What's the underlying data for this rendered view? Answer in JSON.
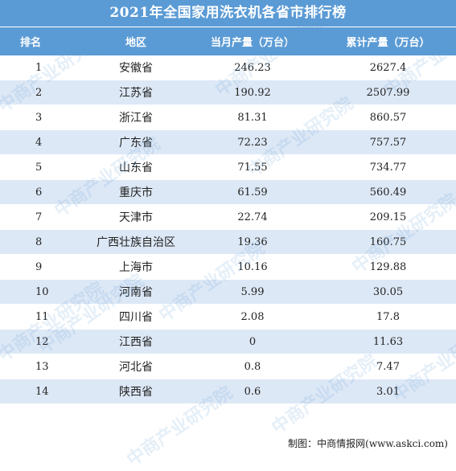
{
  "title": "2021年全国家用洗衣机各省市排行榜",
  "headers": {
    "rank": "排名",
    "region": "地区",
    "monthly": "当月产量（万台）",
    "cumulative": "累计产量（万台）"
  },
  "rows": [
    {
      "rank": "1",
      "region": "安徽省",
      "monthly": "246.23",
      "cumulative": "2627.4"
    },
    {
      "rank": "2",
      "region": "江苏省",
      "monthly": "190.92",
      "cumulative": "2507.99"
    },
    {
      "rank": "3",
      "region": "浙江省",
      "monthly": "81.31",
      "cumulative": "860.57"
    },
    {
      "rank": "4",
      "region": "广东省",
      "monthly": "72.23",
      "cumulative": "757.57"
    },
    {
      "rank": "5",
      "region": "山东省",
      "monthly": "71.55",
      "cumulative": "734.77"
    },
    {
      "rank": "6",
      "region": "重庆市",
      "monthly": "61.59",
      "cumulative": "560.49"
    },
    {
      "rank": "7",
      "region": "天津市",
      "monthly": "22.74",
      "cumulative": "209.15"
    },
    {
      "rank": "8",
      "region": "广西壮族自治区",
      "monthly": "19.36",
      "cumulative": "160.75"
    },
    {
      "rank": "9",
      "region": "上海市",
      "monthly": "10.16",
      "cumulative": "129.88"
    },
    {
      "rank": "10",
      "region": "河南省",
      "monthly": "5.99",
      "cumulative": "30.05"
    },
    {
      "rank": "11",
      "region": "四川省",
      "monthly": "2.08",
      "cumulative": "17.8"
    },
    {
      "rank": "12",
      "region": "江西省",
      "monthly": "0",
      "cumulative": "11.63"
    },
    {
      "rank": "13",
      "region": "河北省",
      "monthly": "0.8",
      "cumulative": "7.47"
    },
    {
      "rank": "14",
      "region": "陕西省",
      "monthly": "0.6",
      "cumulative": "3.01"
    }
  ],
  "credit": "制图：中商情报网(www.askci.com)",
  "watermark": "中商产业研究院",
  "colors": {
    "header_bg": "#5b9bd5",
    "stripe": "#dde8f6",
    "watermark": "#5b9bd5"
  }
}
